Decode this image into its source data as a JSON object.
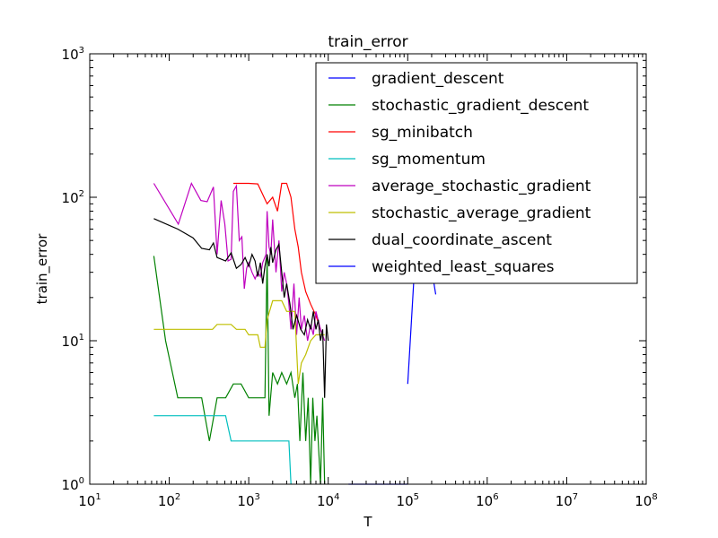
{
  "chart_data": {
    "type": "line",
    "title": "train_error",
    "xlabel": "T",
    "ylabel": "train_error",
    "xscale": "log",
    "yscale": "log",
    "xlim": [
      10,
      100000000
    ],
    "ylim": [
      1,
      1000
    ],
    "x_ticks": [
      {
        "base": "10",
        "exp": "1"
      },
      {
        "base": "10",
        "exp": "2"
      },
      {
        "base": "10",
        "exp": "3"
      },
      {
        "base": "10",
        "exp": "4"
      },
      {
        "base": "10",
        "exp": "5"
      },
      {
        "base": "10",
        "exp": "6"
      },
      {
        "base": "10",
        "exp": "7"
      },
      {
        "base": "10",
        "exp": "8"
      }
    ],
    "y_ticks": [
      {
        "base": "10",
        "exp": "0"
      },
      {
        "base": "10",
        "exp": "1"
      },
      {
        "base": "10",
        "exp": "2"
      },
      {
        "base": "10",
        "exp": "3"
      }
    ],
    "grid": false,
    "legend_position": "top-right",
    "series": [
      {
        "name": "gradient_descent",
        "color": "#0000ff",
        "points": [
          [
            100000,
            5
          ],
          [
            130000,
            60
          ],
          [
            180000,
            45
          ],
          [
            225000,
            21
          ]
        ]
      },
      {
        "name": "stochastic_gradient_descent",
        "color": "#008000",
        "points": [
          [
            64,
            39
          ],
          [
            90,
            10
          ],
          [
            128,
            4
          ],
          [
            200,
            4
          ],
          [
            256,
            4
          ],
          [
            320,
            2
          ],
          [
            400,
            4
          ],
          [
            512,
            4
          ],
          [
            640,
            5
          ],
          [
            800,
            5
          ],
          [
            1000,
            4
          ],
          [
            1300,
            4
          ],
          [
            1600,
            4
          ],
          [
            1700,
            40
          ],
          [
            1800,
            3
          ],
          [
            2000,
            6
          ],
          [
            2300,
            5
          ],
          [
            2600,
            6
          ],
          [
            3000,
            5
          ],
          [
            3400,
            6
          ],
          [
            3800,
            4
          ],
          [
            4100,
            5
          ],
          [
            4400,
            2
          ],
          [
            4800,
            6
          ],
          [
            5200,
            2
          ],
          [
            5600,
            4
          ],
          [
            6000,
            1
          ],
          [
            6400,
            4
          ],
          [
            6800,
            2
          ],
          [
            7200,
            3
          ],
          [
            8000,
            1
          ],
          [
            8500,
            4
          ],
          [
            9000,
            1
          ]
        ]
      },
      {
        "name": "sg_minibatch",
        "color": "#ff0000",
        "points": [
          [
            640,
            125
          ],
          [
            1000,
            125
          ],
          [
            1300,
            124
          ],
          [
            1700,
            90
          ],
          [
            2000,
            100
          ],
          [
            2300,
            80
          ],
          [
            2600,
            125
          ],
          [
            3000,
            125
          ],
          [
            3400,
            100
          ],
          [
            3800,
            60
          ],
          [
            4200,
            45
          ],
          [
            4600,
            30
          ],
          [
            5200,
            22
          ],
          [
            6000,
            18
          ],
          [
            7000,
            15
          ],
          [
            8000,
            12
          ]
        ]
      },
      {
        "name": "sg_momentum",
        "color": "#00bfbf",
        "points": [
          [
            64,
            3
          ],
          [
            128,
            3
          ],
          [
            256,
            3
          ],
          [
            512,
            3
          ],
          [
            600,
            2
          ],
          [
            1000,
            2
          ],
          [
            2000,
            2
          ],
          [
            3200,
            2
          ],
          [
            3400,
            1
          ]
        ]
      },
      {
        "name": "average_stochastic_gradient",
        "color": "#bf00bf",
        "points": [
          [
            64,
            125
          ],
          [
            130,
            65
          ],
          [
            190,
            125
          ],
          [
            250,
            95
          ],
          [
            300,
            93
          ],
          [
            360,
            118
          ],
          [
            400,
            40
          ],
          [
            450,
            95
          ],
          [
            500,
            65
          ],
          [
            550,
            36
          ],
          [
            600,
            37
          ],
          [
            640,
            110
          ],
          [
            700,
            120
          ],
          [
            760,
            50
          ],
          [
            820,
            53
          ],
          [
            880,
            23
          ],
          [
            940,
            32
          ],
          [
            1000,
            35
          ],
          [
            1100,
            30
          ],
          [
            1200,
            27
          ],
          [
            1300,
            30
          ],
          [
            1400,
            28
          ],
          [
            1500,
            35
          ],
          [
            1650,
            40
          ],
          [
            1700,
            80
          ],
          [
            1800,
            45
          ],
          [
            1900,
            40
          ],
          [
            2000,
            70
          ],
          [
            2200,
            30
          ],
          [
            2400,
            50
          ],
          [
            2600,
            22
          ],
          [
            2800,
            30
          ],
          [
            3000,
            25
          ],
          [
            3200,
            18
          ],
          [
            3400,
            12
          ],
          [
            3700,
            25
          ],
          [
            4000,
            11
          ],
          [
            4300,
            20
          ],
          [
            4600,
            12
          ],
          [
            5000,
            15
          ],
          [
            5500,
            10
          ],
          [
            6000,
            13
          ],
          [
            6500,
            11
          ],
          [
            7000,
            16
          ],
          [
            8000,
            12
          ],
          [
            9000,
            10
          ]
        ]
      },
      {
        "name": "stochastic_average_gradient",
        "color": "#bfbf00",
        "points": [
          [
            64,
            12
          ],
          [
            128,
            12
          ],
          [
            256,
            12
          ],
          [
            350,
            12
          ],
          [
            400,
            13
          ],
          [
            500,
            13
          ],
          [
            600,
            13
          ],
          [
            700,
            12
          ],
          [
            800,
            12
          ],
          [
            900,
            12
          ],
          [
            1000,
            11
          ],
          [
            1300,
            11
          ],
          [
            1400,
            9
          ],
          [
            1600,
            9
          ],
          [
            1700,
            14
          ],
          [
            2000,
            19
          ],
          [
            2300,
            19
          ],
          [
            2600,
            19
          ],
          [
            3000,
            16
          ],
          [
            3400,
            16
          ],
          [
            3800,
            16
          ],
          [
            4200,
            5
          ],
          [
            4600,
            7
          ],
          [
            5200,
            8
          ],
          [
            6000,
            10
          ],
          [
            7000,
            11
          ],
          [
            8000,
            11
          ],
          [
            9000,
            11
          ]
        ]
      },
      {
        "name": "dual_coordinate_ascent",
        "color": "#000000",
        "points": [
          [
            64,
            71
          ],
          [
            128,
            60
          ],
          [
            200,
            52
          ],
          [
            256,
            44
          ],
          [
            320,
            43
          ],
          [
            360,
            48
          ],
          [
            400,
            38
          ],
          [
            512,
            36
          ],
          [
            600,
            41
          ],
          [
            700,
            32
          ],
          [
            800,
            34
          ],
          [
            900,
            38
          ],
          [
            1000,
            33
          ],
          [
            1100,
            40
          ],
          [
            1200,
            36
          ],
          [
            1300,
            28
          ],
          [
            1400,
            35
          ],
          [
            1500,
            25
          ],
          [
            1600,
            33
          ],
          [
            1700,
            40
          ],
          [
            1800,
            33
          ],
          [
            1900,
            45
          ],
          [
            2000,
            35
          ],
          [
            2200,
            43
          ],
          [
            2400,
            47
          ],
          [
            2600,
            30
          ],
          [
            2800,
            20
          ],
          [
            3000,
            25
          ],
          [
            3300,
            18
          ],
          [
            3600,
            12
          ],
          [
            4000,
            15
          ],
          [
            4500,
            12
          ],
          [
            5000,
            11
          ],
          [
            5500,
            14
          ],
          [
            6000,
            12
          ],
          [
            6500,
            16
          ],
          [
            7000,
            12
          ],
          [
            7500,
            14
          ],
          [
            8000,
            10
          ],
          [
            8500,
            12
          ],
          [
            9000,
            4
          ],
          [
            9500,
            13
          ],
          [
            10000,
            10
          ]
        ]
      },
      {
        "name": "weighted_least_squares",
        "color": "#0000ff",
        "points": [
          [
            18000,
            1
          ],
          [
            30000,
            1
          ],
          [
            50000,
            1
          ],
          [
            80000,
            1
          ],
          [
            100000,
            1
          ]
        ]
      }
    ]
  }
}
